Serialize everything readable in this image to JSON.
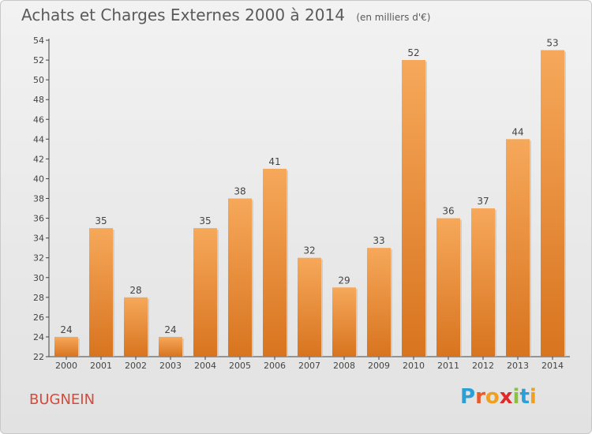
{
  "chart_data": {
    "type": "bar",
    "title": "Achats et Charges Externes 2000 à 2014",
    "unit": "(en milliers d'€)",
    "categories": [
      "2000",
      "2001",
      "2002",
      "2003",
      "2004",
      "2005",
      "2006",
      "2007",
      "2008",
      "2009",
      "2010",
      "2011",
      "2012",
      "2013",
      "2014"
    ],
    "values": [
      24,
      35,
      28,
      24,
      35,
      38,
      41,
      32,
      29,
      33,
      52,
      36,
      37,
      44,
      53
    ],
    "ylim": [
      22,
      54
    ],
    "yticks": [
      22,
      24,
      26,
      28,
      30,
      32,
      34,
      36,
      38,
      40,
      42,
      44,
      46,
      48,
      50,
      52,
      54
    ],
    "grid": false,
    "bar_color": "#f0963e"
  },
  "footer": {
    "city": "BUGNEIN",
    "logo": {
      "letters": [
        "P",
        "r",
        "o",
        "x",
        "i",
        "t",
        "i"
      ],
      "colors": [
        "#2aa0d8",
        "#e85a2a",
        "#f0a020",
        "#e02a2a",
        "#8cc040",
        "#2aa0d8",
        "#f0a020"
      ]
    }
  }
}
